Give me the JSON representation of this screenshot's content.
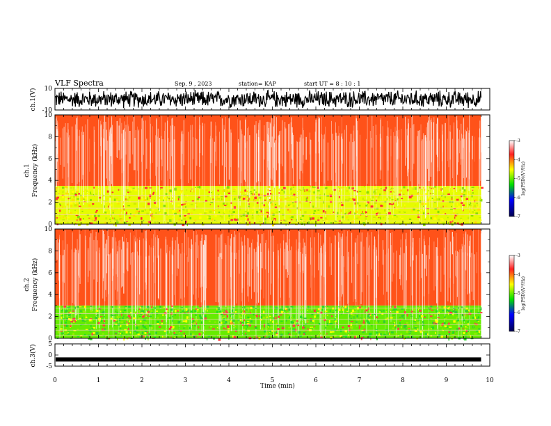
{
  "header": {
    "title": "VLF Spectra",
    "date": "Sep. 9 , 2023",
    "station": "station= KAP",
    "start": "start  UT =   8 : 10 : 1"
  },
  "chart_data": [
    {
      "type": "line",
      "id": "ch1-waveform",
      "ylabel": "ch.1(V)",
      "ylim": [
        -10,
        10
      ],
      "y_tick_labels": [
        "-10",
        "10"
      ],
      "xlim": [
        0,
        10
      ],
      "data_end_min": 9.8,
      "signal": "dense waveform filling roughly -8 to 9 V",
      "color": "#000000"
    },
    {
      "type": "heatmap",
      "id": "ch1-spectrogram",
      "ylabel": "ch.1\nFrequency  (kHz)",
      "ylim": [
        0,
        10
      ],
      "y_tick_labels": [
        "0",
        "2",
        "4",
        "6",
        "8",
        "10"
      ],
      "xlim": [
        0,
        10
      ],
      "data_end_min": 9.8,
      "colorbar": {
        "label": "log(PSD)(V²/Hz)",
        "range": [
          -7,
          -3
        ],
        "tick_labels": [
          "-3",
          "-4",
          "-5",
          "-6",
          "-7"
        ]
      },
      "bands": [
        {
          "from_khz": 0,
          "to_khz": 3.5,
          "level": -4.6
        },
        {
          "from_khz": 3.5,
          "to_khz": 10,
          "level": -3.9
        }
      ]
    },
    {
      "type": "heatmap",
      "id": "ch2-spectrogram",
      "ylabel": "ch.2\nFrequency  (kHz)",
      "ylim": [
        0,
        10
      ],
      "y_tick_labels": [
        "0",
        "2",
        "4",
        "6",
        "8",
        "10"
      ],
      "xlim": [
        0,
        10
      ],
      "data_end_min": 9.8,
      "colorbar": {
        "label": "log(PSD)(V²/Hz)",
        "range": [
          -7,
          -3
        ],
        "tick_labels": [
          "-3",
          "-4",
          "-5",
          "-6",
          "-7"
        ]
      },
      "bands": [
        {
          "from_khz": 0,
          "to_khz": 3,
          "level": -5.0
        },
        {
          "from_khz": 3,
          "to_khz": 10,
          "level": -3.9
        }
      ]
    },
    {
      "type": "line",
      "id": "ch3-waveform",
      "ylabel": "ch.3(V)",
      "ylim": [
        -5,
        5
      ],
      "y_tick_labels": [
        "-5",
        "0",
        "5"
      ],
      "xlim": [
        0,
        10
      ],
      "data_end_min": 9.8,
      "signal": "near-constant band around -2 V",
      "level_v": -2,
      "color": "#000000"
    }
  ],
  "x_axis": {
    "label": "Time  (min)",
    "tick_labels": [
      "0",
      "1",
      "2",
      "3",
      "4",
      "5",
      "6",
      "7",
      "8",
      "9",
      "10"
    ]
  }
}
